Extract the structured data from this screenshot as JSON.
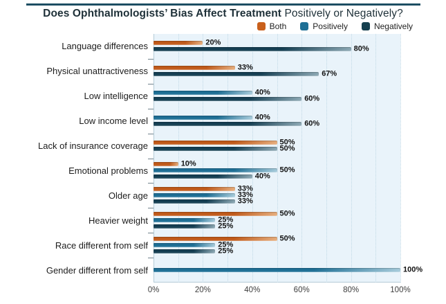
{
  "title": {
    "bold": "Does Ophthalmologists’ Bias Affect Treatment",
    "regular": "Positively or Negatively?"
  },
  "legend": {
    "items": [
      {
        "label": "Both",
        "color": "#c9601c"
      },
      {
        "label": "Positively",
        "color": "#1e6f95"
      },
      {
        "label": "Negatively",
        "color": "#16404f"
      }
    ]
  },
  "colors": {
    "top_rule": "#1d4e63",
    "title_text": "#1e3038",
    "plot_background": "#e9f3fa",
    "gridline": "#bfd8e5",
    "axis_line": "#b4cbd7",
    "series": {
      "Both": {
        "main": "#c05a1a",
        "tip": "#e6ae7e"
      },
      "Positively": {
        "main": "#1e6f95",
        "tip": "#a6cbdb"
      },
      "Negatively": {
        "main": "#153f53",
        "tip": "#8ca8b4"
      }
    }
  },
  "chart_data": {
    "type": "bar",
    "orientation": "horizontal",
    "title": "Does Ophthalmologists’ Bias Affect Treatment Positively or Negatively?",
    "series": [
      "Both",
      "Positively",
      "Negatively"
    ],
    "xlim": [
      0,
      100
    ],
    "x_tick_labels": [
      "0%",
      "20%",
      "40%",
      "60%",
      "80%",
      "100%"
    ],
    "grid": "dotted vertical gridlines every 10%",
    "legend_position": "top",
    "rows": [
      {
        "category": "Language differences",
        "bars": [
          {
            "series": "Both",
            "value": 20,
            "label": "20%"
          },
          {
            "series": "Negatively",
            "value": 80,
            "label": "80%"
          }
        ]
      },
      {
        "category": "Physical unattractiveness",
        "bars": [
          {
            "series": "Both",
            "value": 33,
            "label": "33%"
          },
          {
            "series": "Negatively",
            "value": 67,
            "label": "67%"
          }
        ]
      },
      {
        "category": "Low intelligence",
        "bars": [
          {
            "series": "Positively",
            "value": 40,
            "label": "40%"
          },
          {
            "series": "Negatively",
            "value": 60,
            "label": "60%"
          }
        ]
      },
      {
        "category": "Low income level",
        "bars": [
          {
            "series": "Positively",
            "value": 40,
            "label": "40%"
          },
          {
            "series": "Negatively",
            "value": 60,
            "label": "60%"
          }
        ]
      },
      {
        "category": "Lack of insurance coverage",
        "bars": [
          {
            "series": "Both",
            "value": 50,
            "label": "50%"
          },
          {
            "series": "Negatively",
            "value": 50,
            "label": "50%"
          }
        ]
      },
      {
        "category": "Emotional problems",
        "bars": [
          {
            "series": "Both",
            "value": 10,
            "label": "10%"
          },
          {
            "series": "Positively",
            "value": 50,
            "label": "50%"
          },
          {
            "series": "Negatively",
            "value": 40,
            "label": "40%"
          }
        ]
      },
      {
        "category": "Older age",
        "bars": [
          {
            "series": "Both",
            "value": 33,
            "label": "33%"
          },
          {
            "series": "Positively",
            "value": 33,
            "label": "33%"
          },
          {
            "series": "Negatively",
            "value": 33,
            "label": "33%"
          }
        ]
      },
      {
        "category": "Heavier weight",
        "bars": [
          {
            "series": "Both",
            "value": 50,
            "label": "50%"
          },
          {
            "series": "Positively",
            "value": 25,
            "label": "25%"
          },
          {
            "series": "Negatively",
            "value": 25,
            "label": "25%"
          }
        ]
      },
      {
        "category": "Race different from self",
        "bars": [
          {
            "series": "Both",
            "value": 50,
            "label": "50%"
          },
          {
            "series": "Positively",
            "value": 25,
            "label": "25%"
          },
          {
            "series": "Negatively",
            "value": 25,
            "label": "25%"
          }
        ]
      },
      {
        "category": "Gender different from self",
        "bars": [
          {
            "series": "Positively",
            "value": 100,
            "label": "100%"
          }
        ]
      }
    ]
  }
}
